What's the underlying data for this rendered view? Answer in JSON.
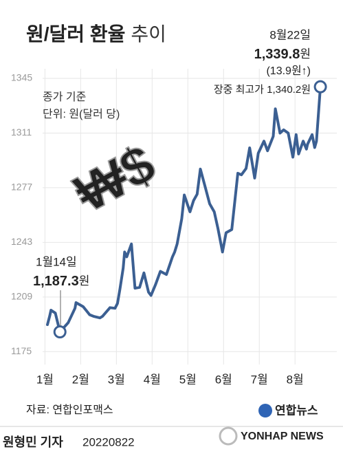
{
  "chart_data": {
    "type": "line",
    "title": {
      "main": "원/달러 환율",
      "rest": "추이"
    },
    "notes": [
      "종가 기준",
      "단위: 원(달러 당)"
    ],
    "illustration_text": "₩$",
    "xlim": [
      0.8,
      9.17
    ],
    "xticks": [
      {
        "value": 1,
        "label": "1월"
      },
      {
        "value": 2,
        "label": "2월"
      },
      {
        "value": 3,
        "label": "3월"
      },
      {
        "value": 4,
        "label": "4월"
      },
      {
        "value": 5,
        "label": "5월"
      },
      {
        "value": 6,
        "label": "6월"
      },
      {
        "value": 7,
        "label": "7월"
      },
      {
        "value": 8,
        "label": "8월"
      }
    ],
    "ylim": [
      1167,
      1351
    ],
    "yticks": [
      1175,
      1209,
      1243,
      1277,
      1311,
      1345
    ],
    "grid": true,
    "series": [
      {
        "name": "원/달러 환율",
        "color": "#3b5f92",
        "x": [
          1.07,
          1.13,
          1.17,
          1.29,
          1.42,
          1.65,
          1.84,
          1.87,
          2.07,
          2.25,
          2.36,
          2.54,
          2.61,
          2.82,
          2.96,
          3.03,
          3.1,
          3.19,
          3.23,
          3.29,
          3.42,
          3.52,
          3.65,
          3.77,
          3.9,
          3.97,
          4.1,
          4.23,
          4.4,
          4.57,
          4.63,
          4.7,
          4.83,
          4.9,
          5.06,
          5.16,
          5.26,
          5.35,
          5.48,
          5.61,
          5.74,
          5.84,
          5.97,
          6.07,
          6.23,
          6.4,
          6.5,
          6.63,
          6.73,
          6.87,
          6.97,
          7.13,
          7.23,
          7.39,
          7.45,
          7.58,
          7.68,
          7.81,
          7.94,
          8.03,
          8.1,
          8.23,
          8.32,
          8.35,
          8.48,
          8.55,
          8.6,
          8.71
        ],
        "values": [
          1191.8,
          1197,
          1200.8,
          1199,
          1187.3,
          1193,
          1202,
          1205.5,
          1203,
          1198,
          1197,
          1196,
          1197,
          1202.4,
          1202,
          1205,
          1214,
          1227,
          1237,
          1234,
          1242,
          1214.5,
          1215,
          1224,
          1212,
          1210,
          1217,
          1225,
          1223,
          1234,
          1237,
          1242,
          1257.7,
          1272.5,
          1262,
          1269,
          1273,
          1288.6,
          1278,
          1267,
          1262,
          1252,
          1237,
          1249,
          1251,
          1286,
          1285,
          1289,
          1301.8,
          1283,
          1298.4,
          1306,
          1300,
          1309,
          1326.1,
          1311,
          1313,
          1311,
          1296,
          1310,
          1298,
          1306,
          1301,
          1304,
          1310,
          1302,
          1306,
          1339.8
        ]
      }
    ],
    "annotations": {
      "start": {
        "date": "1월14일",
        "x": 1.42,
        "value": 1187.3,
        "value_label": "1,187.3",
        "unit": "원"
      },
      "end": {
        "date": "8월22일",
        "x": 8.71,
        "value": 1339.8,
        "value_label": "1,339.8",
        "unit": "원",
        "change": "(13.9원↑)",
        "intraday_high": "장중 최고가 1,340.2원"
      }
    },
    "source": "자료: 연합인포맥스",
    "byline": {
      "reporter": "원형민 기자",
      "date": "20220822"
    },
    "logo": "연합뉴스",
    "watermark": "YONHAP NEWS"
  }
}
